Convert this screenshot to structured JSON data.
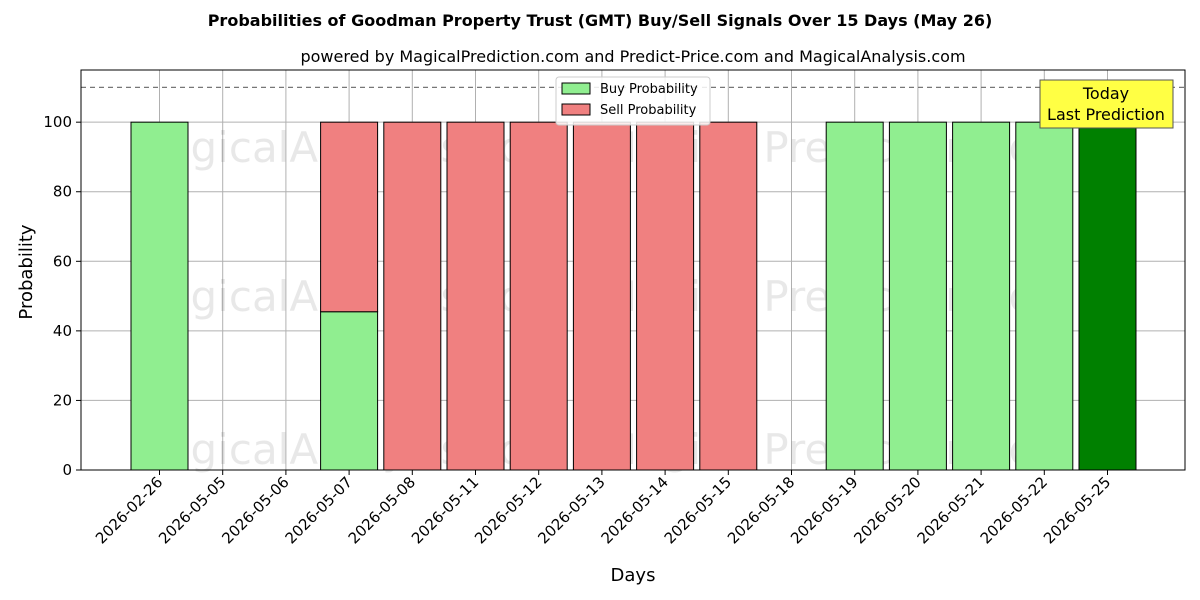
{
  "chart_data": {
    "type": "bar",
    "stacked": true,
    "title": "Probabilities of Goodman Property Trust (GMT) Buy/Sell Signals Over 15 Days (May 26)",
    "subtitle": "powered by MagicalPrediction.com and Predict-Price.com and MagicalAnalysis.com",
    "xlabel": "Days",
    "ylabel": "Probability",
    "ylim": [
      0,
      115
    ],
    "yticks": [
      0,
      20,
      40,
      60,
      80,
      100
    ],
    "reference_line": 110,
    "grid": true,
    "legend_position": "top-center",
    "categories": [
      "2026-02-26",
      "2026-05-05",
      "2026-05-06",
      "2026-05-07",
      "2026-05-08",
      "2026-05-11",
      "2026-05-12",
      "2026-05-13",
      "2026-05-14",
      "2026-05-15",
      "2026-05-18",
      "2026-05-19",
      "2026-05-20",
      "2026-05-21",
      "2026-05-22",
      "2026-05-25"
    ],
    "series": [
      {
        "name": "Buy Probability",
        "color": "#90ee90",
        "values": [
          100,
          0,
          0,
          45.5,
          0,
          0,
          0,
          0,
          0,
          0,
          0,
          100,
          100,
          100,
          100,
          100
        ]
      },
      {
        "name": "Sell Probability",
        "color": "#f08080",
        "values": [
          0,
          0,
          0,
          54.5,
          100,
          100,
          100,
          100,
          100,
          100,
          0,
          0,
          0,
          0,
          0,
          0
        ]
      }
    ],
    "highlight": {
      "index": 15,
      "color": "#008000"
    },
    "annotation": {
      "line1": "Today",
      "line2": "Last Prediction",
      "background": "#ffff44"
    },
    "watermarks": [
      "MagicalAnalysis.com",
      "Magica Prediction.com"
    ]
  }
}
